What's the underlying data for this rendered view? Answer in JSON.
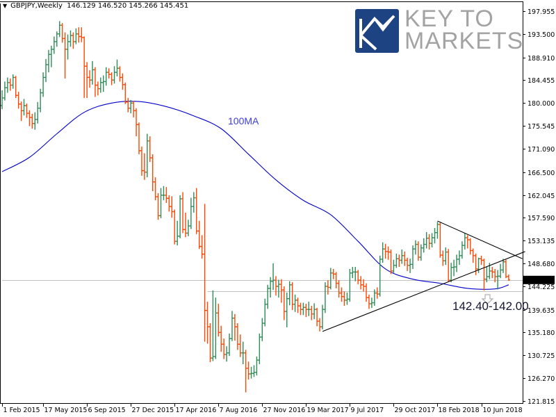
{
  "header": {
    "menu_icon": "triangle-down-icon",
    "symbol": "GBPJPY,Weekly",
    "ohlc": "146.129 146.520 145.266 145.451"
  },
  "logo": {
    "line1": "KEY TO",
    "line2": "MARKETS",
    "box_color": "#1e4383",
    "text_color": "#a3a3a3"
  },
  "colors": {
    "up_bar": "#2e8b57",
    "down_bar": "#ff4500",
    "ma": "#0000cd",
    "trendline": "#000000",
    "level_line": "#c0c0c0",
    "price_label_bg": "#000000"
  },
  "chart_data": {
    "type": "ohlc",
    "symbol": "GBPJPY",
    "timeframe": "Weekly",
    "first_bar_date": "1 Feb 2015",
    "ylim": [
      121.4,
      199.45
    ],
    "grid": false,
    "y_ticks": [
      "197.955",
      "193.500",
      "188.910",
      "184.455",
      "180.000",
      "175.545",
      "171.090",
      "166.500",
      "162.045",
      "157.590",
      "153.135",
      "148.680",
      "144.225",
      "139.635",
      "135.180",
      "130.725",
      "126.270",
      "121.815"
    ],
    "x_ticks": [
      "1 Feb 2015",
      "17 May 2015",
      "6 Sep 2015",
      "27 Dec 2015",
      "17 Apr 2016",
      "7 Aug 2016",
      "27 Nov 2016",
      "19 Mar 2017",
      "9 Jul 2017",
      "29 Oct 2017",
      "18 Feb 2018",
      "10 Jun 2018"
    ],
    "current_price": "145.451",
    "bars_ohlc": [
      [
        179.5,
        182.5,
        178.8,
        181.0
      ],
      [
        181.0,
        184.2,
        180.5,
        183.0
      ],
      [
        183.0,
        185.0,
        182.0,
        184.0
      ],
      [
        184.0,
        184.8,
        182.4,
        183.5
      ],
      [
        183.5,
        185.6,
        182.8,
        185.0
      ],
      [
        185.0,
        185.3,
        181.0,
        181.5
      ],
      [
        181.5,
        182.2,
        178.9,
        179.8
      ],
      [
        179.8,
        180.3,
        176.5,
        178.5
      ],
      [
        178.5,
        180.8,
        177.6,
        179.5
      ],
      [
        179.5,
        179.9,
        177.1,
        178.0
      ],
      [
        178.0,
        178.6,
        175.5,
        177.2
      ],
      [
        177.2,
        177.9,
        175.0,
        176.0
      ],
      [
        176.0,
        178.2,
        174.8,
        176.8
      ],
      [
        176.8,
        180.2,
        176.0,
        179.0
      ],
      [
        179.0,
        182.8,
        178.2,
        182.0
      ],
      [
        182.0,
        186.0,
        181.2,
        185.0
      ],
      [
        185.0,
        188.6,
        184.1,
        187.5
      ],
      [
        187.5,
        190.4,
        186.0,
        189.5
      ],
      [
        189.5,
        191.2,
        187.0,
        190.5
      ],
      [
        190.5,
        193.0,
        189.6,
        192.0
      ],
      [
        192.0,
        194.0,
        191.0,
        193.5
      ],
      [
        193.5,
        196.0,
        192.9,
        195.2
      ],
      [
        195.2,
        195.6,
        191.8,
        192.6
      ],
      [
        192.6,
        193.8,
        184.8,
        190.5
      ],
      [
        190.5,
        193.4,
        188.5,
        192.0
      ],
      [
        192.0,
        194.2,
        191.0,
        193.2
      ],
      [
        193.2,
        193.8,
        190.6,
        192.0
      ],
      [
        192.0,
        194.6,
        191.5,
        193.5
      ],
      [
        193.5,
        194.8,
        191.8,
        193.0
      ],
      [
        193.0,
        194.8,
        191.9,
        192.8
      ],
      [
        192.8,
        193.0,
        181.0,
        187.2
      ],
      [
        187.2,
        188.0,
        181.0,
        185.0
      ],
      [
        185.0,
        186.4,
        183.0,
        184.5
      ],
      [
        184.5,
        188.2,
        183.6,
        186.5
      ],
      [
        186.5,
        187.0,
        181.2,
        183.5
      ],
      [
        183.5,
        184.2,
        181.5,
        182.8
      ],
      [
        182.8,
        185.0,
        182.0,
        184.0
      ],
      [
        184.0,
        185.4,
        182.2,
        184.2
      ],
      [
        184.2,
        187.0,
        183.4,
        186.0
      ],
      [
        186.0,
        186.8,
        184.8,
        185.6
      ],
      [
        185.6,
        186.0,
        183.5,
        184.5
      ],
      [
        184.5,
        187.2,
        183.8,
        186.0
      ],
      [
        186.0,
        188.5,
        185.2,
        186.8
      ],
      [
        186.8,
        187.2,
        184.2,
        185.0
      ],
      [
        185.0,
        185.8,
        182.6,
        183.6
      ],
      [
        183.6,
        184.0,
        179.8,
        180.2
      ],
      [
        180.2,
        181.0,
        178.2,
        179.0
      ],
      [
        179.0,
        180.6,
        178.0,
        180.0
      ],
      [
        180.0,
        180.4,
        177.2,
        178.5
      ],
      [
        178.5,
        179.0,
        173.5,
        175.8
      ],
      [
        175.8,
        176.2,
        170.0,
        170.7
      ],
      [
        170.7,
        171.5,
        165.8,
        166.8
      ],
      [
        166.8,
        170.2,
        165.0,
        166.5
      ],
      [
        166.5,
        174.0,
        165.5,
        172.6
      ],
      [
        172.6,
        173.5,
        168.5,
        169.3
      ],
      [
        169.3,
        170.0,
        162.8,
        164.6
      ],
      [
        164.6,
        165.5,
        161.0,
        161.7
      ],
      [
        161.7,
        162.4,
        157.2,
        158.0
      ],
      [
        158.0,
        163.4,
        157.5,
        162.0
      ],
      [
        162.0,
        163.8,
        161.0,
        162.0
      ],
      [
        162.0,
        163.6,
        160.5,
        161.4
      ],
      [
        161.4,
        162.0,
        158.8,
        159.8
      ],
      [
        159.8,
        161.8,
        157.6,
        158.8
      ],
      [
        158.8,
        159.2,
        152.4,
        153.0
      ],
      [
        153.0,
        157.0,
        152.2,
        154.0
      ],
      [
        154.0,
        162.0,
        153.6,
        161.3
      ],
      [
        161.3,
        162.6,
        154.6,
        155.3
      ],
      [
        155.3,
        158.6,
        153.8,
        154.6
      ],
      [
        154.6,
        157.2,
        154.0,
        156.0
      ],
      [
        156.0,
        161.5,
        155.4,
        159.8
      ],
      [
        159.8,
        162.6,
        158.6,
        161.5
      ],
      [
        161.5,
        163.4,
        154.4,
        155.0
      ],
      [
        155.0,
        157.0,
        151.5,
        152.0
      ],
      [
        152.0,
        154.2,
        149.6,
        150.5
      ],
      [
        150.5,
        160.3,
        133.4,
        139.5
      ],
      [
        139.5,
        141.2,
        133.0,
        136.3
      ],
      [
        136.3,
        137.0,
        129.4,
        130.2
      ],
      [
        130.2,
        143.4,
        129.6,
        130.5
      ],
      [
        130.5,
        142.0,
        130.0,
        139.0
      ],
      [
        139.0,
        140.8,
        134.4,
        135.2
      ],
      [
        135.2,
        136.5,
        131.4,
        132.9
      ],
      [
        132.9,
        134.0,
        130.0,
        130.9
      ],
      [
        130.9,
        132.5,
        129.5,
        131.2
      ],
      [
        131.2,
        135.0,
        130.6,
        134.0
      ],
      [
        134.0,
        139.4,
        133.5,
        138.0
      ],
      [
        138.0,
        138.8,
        133.6,
        136.3
      ],
      [
        136.3,
        137.0,
        131.8,
        132.9
      ],
      [
        132.9,
        134.8,
        130.4,
        131.2
      ],
      [
        131.2,
        133.4,
        129.0,
        131.2
      ],
      [
        131.2,
        131.8,
        123.5,
        128.2
      ],
      [
        128.2,
        129.5,
        126.0,
        127.1
      ],
      [
        127.1,
        128.5,
        126.2,
        127.2
      ],
      [
        127.2,
        128.8,
        126.5,
        127.4
      ],
      [
        127.4,
        130.5,
        126.8,
        129.8
      ],
      [
        129.8,
        135.0,
        129.0,
        134.3
      ],
      [
        134.3,
        138.0,
        133.5,
        137.0
      ],
      [
        137.0,
        141.8,
        136.4,
        140.7
      ],
      [
        140.7,
        144.5,
        139.8,
        143.8
      ],
      [
        143.8,
        146.0,
        142.0,
        145.2
      ],
      [
        145.2,
        148.7,
        143.5,
        145.4
      ],
      [
        145.4,
        146.2,
        142.4,
        144.2
      ],
      [
        144.2,
        145.5,
        142.0,
        144.6
      ],
      [
        144.6,
        145.6,
        141.0,
        143.5
      ],
      [
        143.5,
        144.2,
        137.6,
        139.3
      ],
      [
        139.3,
        143.0,
        136.2,
        141.8
      ],
      [
        141.8,
        145.2,
        140.5,
        144.5
      ],
      [
        144.5,
        145.0,
        139.6,
        140.7
      ],
      [
        140.7,
        142.6,
        139.2,
        141.5
      ],
      [
        141.5,
        142.0,
        139.0,
        140.4
      ],
      [
        140.4,
        141.0,
        138.6,
        139.7
      ],
      [
        139.7,
        141.0,
        138.6,
        140.1
      ],
      [
        140.1,
        140.8,
        138.2,
        139.7
      ],
      [
        139.7,
        141.2,
        138.4,
        139.7
      ],
      [
        139.7,
        140.4,
        137.6,
        138.8
      ],
      [
        138.8,
        140.9,
        137.8,
        139.7
      ],
      [
        139.7,
        140.0,
        136.4,
        137.4
      ],
      [
        137.4,
        138.0,
        135.4,
        136.3
      ],
      [
        136.3,
        140.6,
        135.8,
        139.7
      ],
      [
        139.7,
        145.0,
        139.0,
        144.2
      ],
      [
        144.2,
        145.4,
        142.6,
        144.0
      ],
      [
        144.0,
        147.8,
        143.6,
        146.8
      ],
      [
        146.8,
        147.6,
        145.6,
        146.6
      ],
      [
        146.6,
        147.0,
        143.8,
        144.8
      ],
      [
        144.8,
        145.4,
        142.0,
        142.9
      ],
      [
        142.9,
        144.0,
        141.2,
        142.2
      ],
      [
        142.2,
        143.2,
        140.4,
        141.5
      ],
      [
        141.5,
        143.0,
        140.6,
        141.7
      ],
      [
        141.7,
        147.6,
        141.2,
        146.8
      ],
      [
        146.8,
        148.0,
        145.8,
        147.0
      ],
      [
        147.0,
        148.0,
        145.2,
        147.0
      ],
      [
        147.0,
        147.4,
        144.6,
        145.4
      ],
      [
        145.4,
        146.2,
        143.6,
        144.5
      ],
      [
        144.5,
        145.6,
        143.2,
        144.2
      ],
      [
        144.2,
        144.8,
        141.2,
        142.0
      ],
      [
        142.0,
        142.6,
        139.8,
        140.8
      ],
      [
        140.8,
        142.0,
        140.0,
        141.0
      ],
      [
        141.0,
        143.6,
        140.4,
        142.9
      ],
      [
        142.9,
        144.0,
        141.8,
        142.7
      ],
      [
        142.7,
        150.2,
        142.2,
        149.5
      ],
      [
        149.5,
        152.8,
        148.8,
        151.5
      ],
      [
        151.5,
        152.5,
        149.6,
        151.0
      ],
      [
        151.0,
        152.0,
        149.4,
        150.9
      ],
      [
        150.9,
        151.4,
        146.6,
        147.2
      ],
      [
        147.2,
        149.4,
        146.8,
        148.3
      ],
      [
        148.3,
        150.6,
        147.8,
        149.6
      ],
      [
        149.6,
        150.4,
        148.0,
        149.3
      ],
      [
        149.3,
        151.4,
        148.6,
        150.2
      ],
      [
        150.2,
        151.0,
        148.2,
        149.3
      ],
      [
        149.3,
        149.8,
        147.2,
        148.3
      ],
      [
        148.3,
        149.6,
        146.8,
        148.5
      ],
      [
        148.5,
        152.2,
        147.6,
        151.5
      ],
      [
        151.5,
        153.2,
        150.4,
        152.4
      ],
      [
        152.4,
        153.0,
        149.2,
        149.9
      ],
      [
        149.9,
        152.4,
        149.2,
        151.7
      ],
      [
        151.7,
        153.6,
        150.8,
        152.4
      ],
      [
        152.4,
        154.8,
        151.6,
        153.6
      ],
      [
        153.6,
        154.4,
        151.4,
        152.6
      ],
      [
        152.6,
        154.6,
        151.8,
        153.7
      ],
      [
        153.7,
        155.6,
        152.6,
        154.7
      ],
      [
        154.7,
        156.8,
        153.5,
        156.3
      ],
      [
        156.3,
        156.6,
        149.8,
        150.3
      ],
      [
        150.3,
        151.2,
        148.2,
        149.2
      ],
      [
        149.2,
        151.8,
        148.4,
        150.9
      ],
      [
        150.9,
        151.5,
        145.1,
        145.4
      ],
      [
        145.4,
        148.8,
        145.0,
        147.9
      ],
      [
        147.9,
        149.4,
        146.2,
        148.0
      ],
      [
        148.0,
        150.4,
        147.0,
        149.5
      ],
      [
        149.5,
        151.2,
        148.4,
        150.2
      ],
      [
        150.2,
        153.0,
        149.6,
        152.2
      ],
      [
        152.2,
        154.6,
        151.4,
        153.7
      ],
      [
        153.7,
        154.2,
        151.6,
        153.3
      ],
      [
        153.3,
        153.6,
        150.4,
        151.2
      ],
      [
        151.2,
        151.6,
        148.8,
        150.2
      ],
      [
        150.2,
        150.6,
        146.4,
        147.6
      ],
      [
        147.6,
        149.8,
        146.8,
        149.6
      ],
      [
        149.6,
        150.2,
        148.4,
        149.3
      ],
      [
        149.3,
        149.6,
        143.4,
        145.6
      ],
      [
        145.6,
        148.0,
        145.0,
        146.1
      ],
      [
        146.1,
        148.8,
        145.6,
        147.2
      ],
      [
        147.2,
        148.0,
        145.8,
        147.0
      ],
      [
        147.0,
        147.6,
        145.0,
        146.1
      ],
      [
        146.1,
        147.4,
        143.6,
        146.2
      ],
      [
        146.2,
        148.6,
        145.8,
        147.4
      ],
      [
        147.4,
        149.6,
        146.8,
        149.0
      ],
      [
        149.0,
        149.4,
        145.8,
        146.1
      ],
      [
        146.129,
        146.52,
        145.266,
        145.451
      ]
    ],
    "moving_average": {
      "label": "100MA",
      "period": 100,
      "points": [
        [
          "1 Feb 2015",
          166.6
        ],
        [
          "12 Apr 2015",
          169.4
        ],
        [
          "21 Jun 2015",
          174.0
        ],
        [
          "30 Aug 2015",
          178.2
        ],
        [
          "8 Nov 2015",
          180.0
        ],
        [
          "17 Jan 2016",
          180.3
        ],
        [
          "27 Mar 2016",
          179.3
        ],
        [
          "5 Jun 2016",
          177.5
        ],
        [
          "14 Aug 2016",
          175.0
        ],
        [
          "23 Oct 2016",
          170.0
        ],
        [
          "1 Jan 2017",
          165.0
        ],
        [
          "12 Mar 2017",
          161.0
        ],
        [
          "21 May 2017",
          158.2
        ],
        [
          "30 Jul 2017",
          153.0
        ],
        [
          "8 Oct 2017",
          147.6
        ],
        [
          "17 Dec 2017",
          145.6
        ],
        [
          "25 Feb 2018",
          144.8
        ],
        [
          "6 May 2018",
          143.8
        ],
        [
          "15 Jul 2018",
          143.7
        ],
        [
          "19 Aug 2018",
          144.5
        ]
      ]
    },
    "trendlines": [
      {
        "name": "lower-trendline",
        "from": [
          "30 Apr 2017",
          135.4
        ],
        "to": [
          "30 Sep 2018",
          151.0
        ]
      },
      {
        "name": "upper-trendline",
        "from": [
          "18 Feb 2018",
          156.97
        ],
        "to": [
          "23 Sep 2018",
          149.6
        ]
      }
    ],
    "horizontal_levels": [
      {
        "name": "current-price-line",
        "price": 145.451,
        "from": "1 Feb 2015"
      },
      {
        "name": "support-level-line",
        "price": 143.3,
        "from": "10 Jul 2016"
      }
    ],
    "annotations": {
      "ma_label": "100MA",
      "support_zone": "142.40-142.00",
      "support_arrow_icon": "hollow-down-arrow-icon"
    }
  }
}
